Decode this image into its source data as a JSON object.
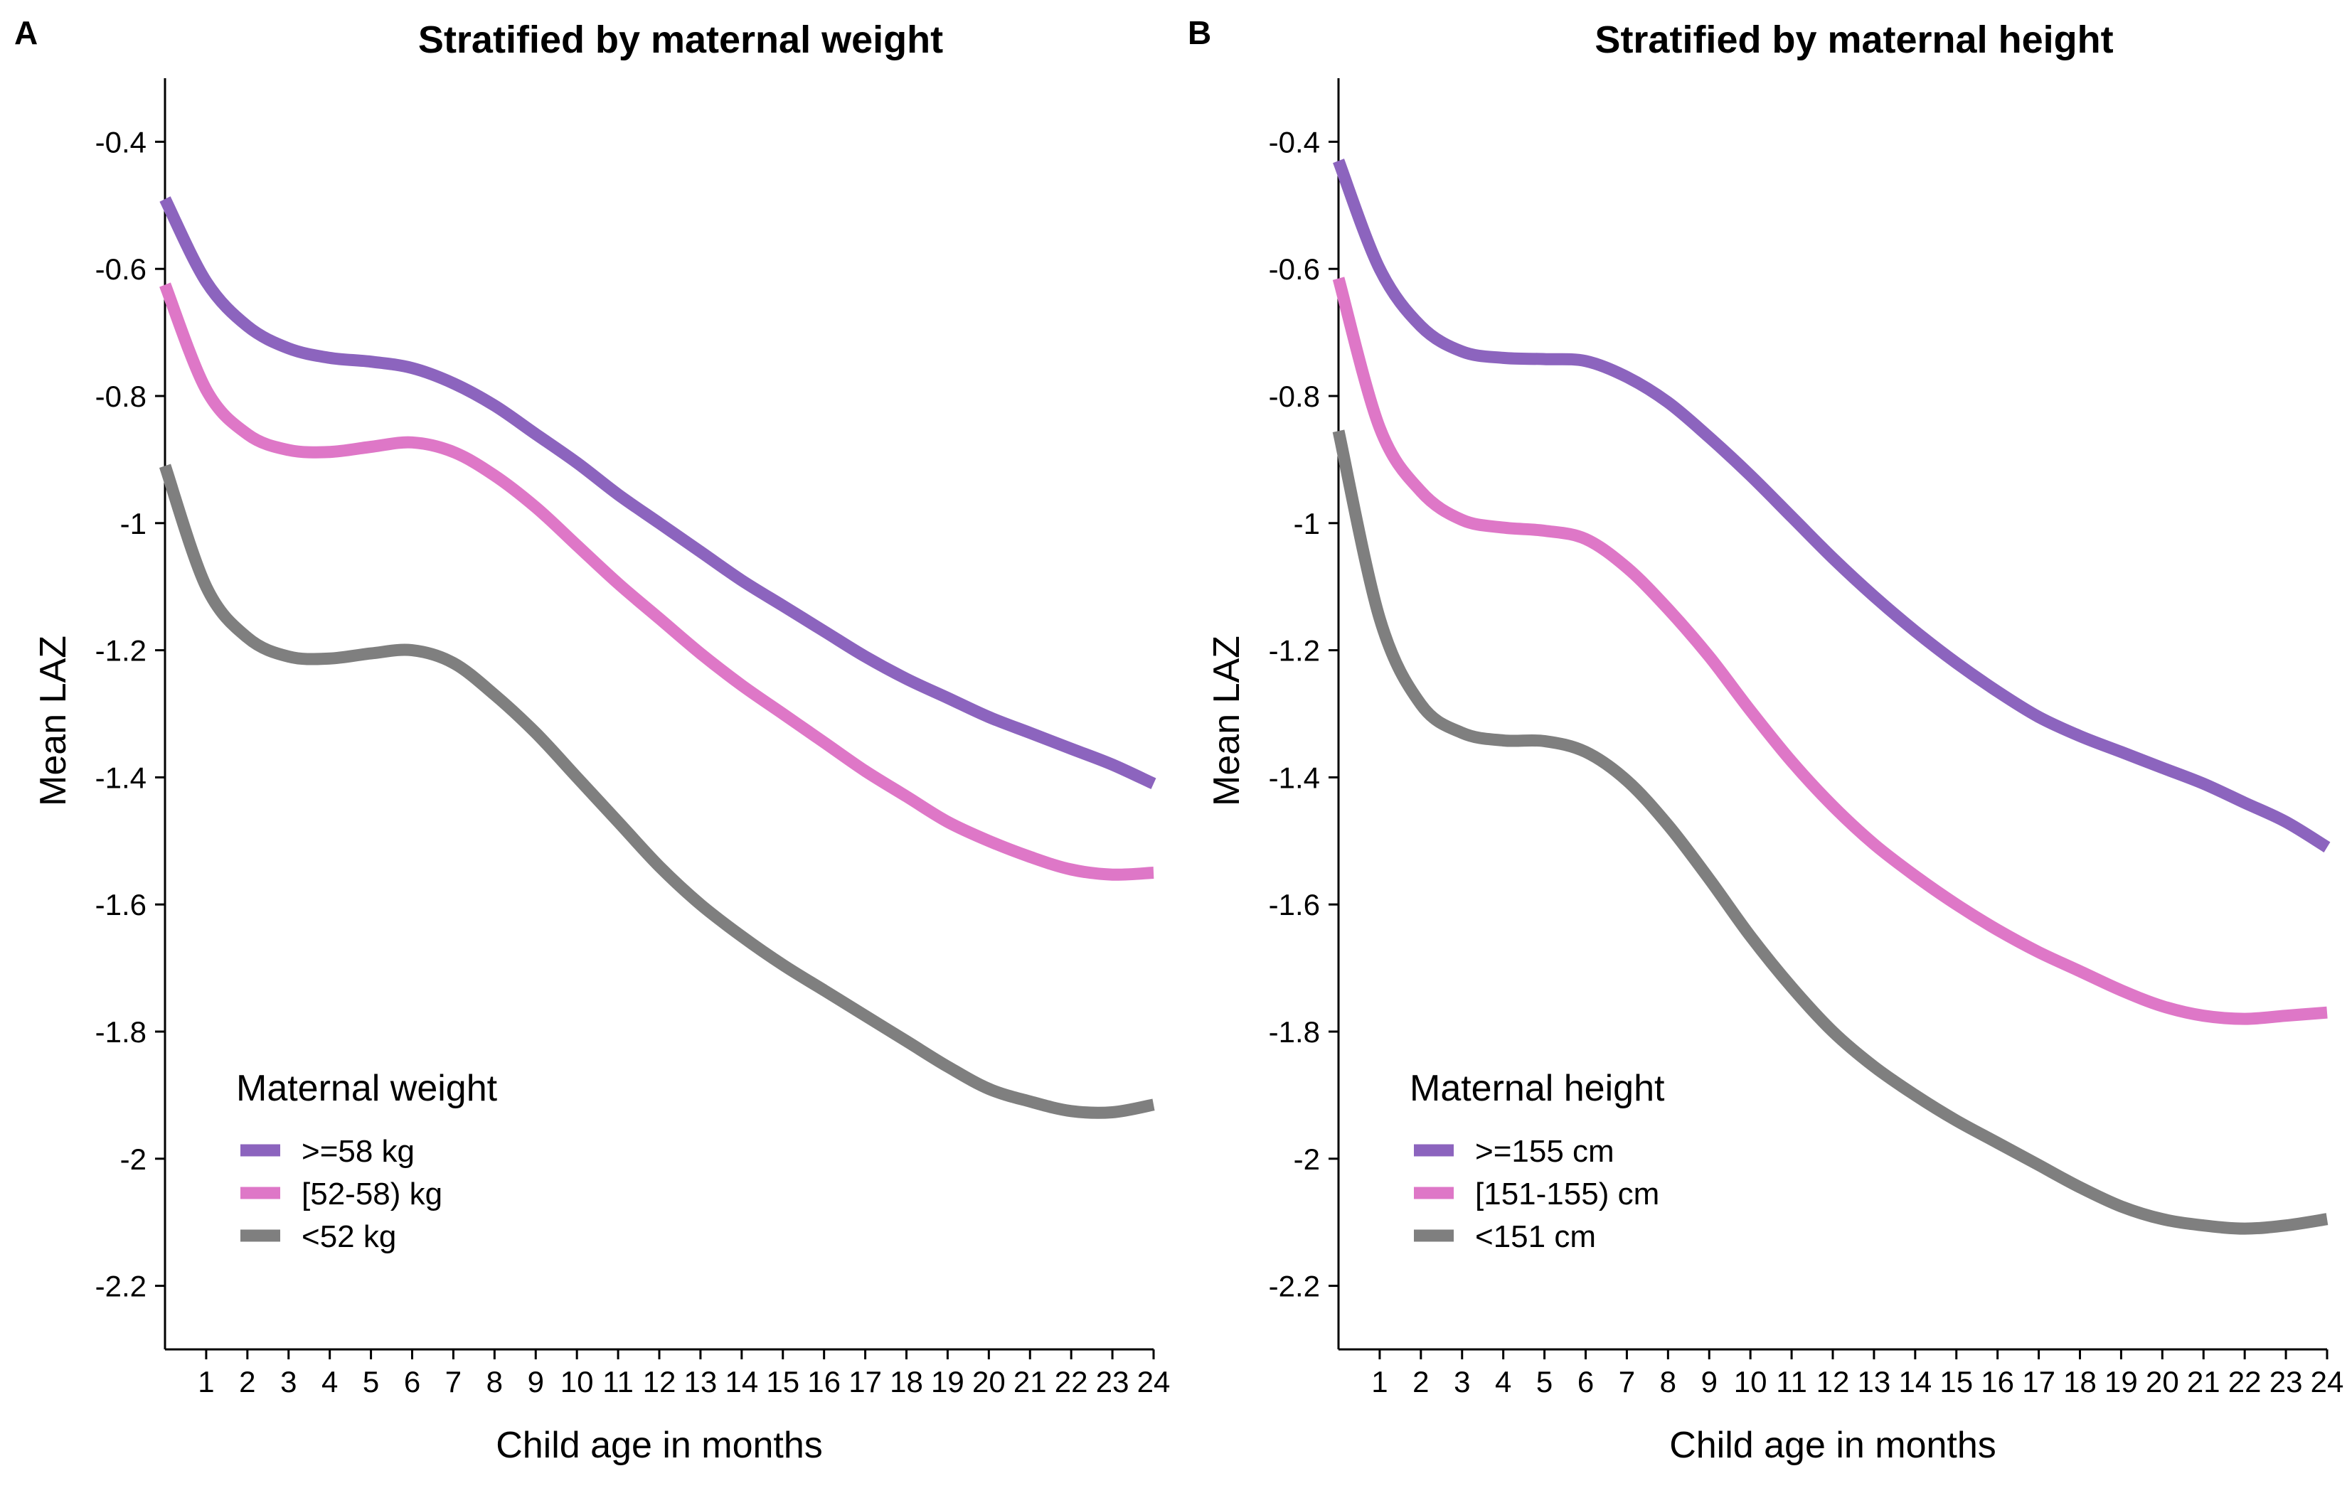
{
  "chart_data": [
    {
      "type": "line",
      "panel_label": "A",
      "title": "Stratified by maternal weight",
      "xlabel": "Child age in months",
      "ylabel": "Mean LAZ",
      "xlim": [
        0,
        24
      ],
      "ylim": [
        -2.3,
        -0.3
      ],
      "x_ticks": [
        1,
        2,
        3,
        4,
        5,
        6,
        7,
        8,
        9,
        10,
        11,
        12,
        13,
        14,
        15,
        16,
        17,
        18,
        19,
        20,
        21,
        22,
        23,
        24
      ],
      "y_ticks": [
        -0.4,
        -0.6,
        -0.8,
        -1,
        -1.2,
        -1.4,
        -1.6,
        -1.8,
        -2,
        -2.2
      ],
      "y_tick_labels": [
        "-0.4",
        "-0.6",
        "-0.8",
        "-1",
        "-1.2",
        "-1.4",
        "-1.6",
        "-1.8",
        "-2",
        "-2.2"
      ],
      "grid": false,
      "legend": {
        "title": "Maternal weight",
        "position": "bottom-left"
      },
      "x": [
        0,
        1,
        2,
        3,
        4,
        5,
        6,
        7,
        8,
        9,
        10,
        11,
        12,
        13,
        14,
        15,
        16,
        17,
        18,
        19,
        20,
        21,
        22,
        23,
        24
      ],
      "series": [
        {
          "name": ">=58 kg",
          "color": "#8C64BE",
          "values": [
            -0.49,
            -0.62,
            -0.69,
            -0.725,
            -0.74,
            -0.746,
            -0.756,
            -0.78,
            -0.815,
            -0.86,
            -0.905,
            -0.955,
            -1.0,
            -1.045,
            -1.09,
            -1.13,
            -1.17,
            -1.21,
            -1.245,
            -1.275,
            -1.305,
            -1.33,
            -1.355,
            -1.38,
            -1.41
          ]
        },
        {
          "name": "[52-58) kg",
          "color": "#DE77C7",
          "values": [
            -0.625,
            -0.79,
            -0.86,
            -0.885,
            -0.888,
            -0.88,
            -0.873,
            -0.888,
            -0.925,
            -0.975,
            -1.035,
            -1.095,
            -1.15,
            -1.205,
            -1.255,
            -1.3,
            -1.345,
            -1.39,
            -1.43,
            -1.47,
            -1.5,
            -1.525,
            -1.545,
            -1.553,
            -1.55
          ]
        },
        {
          "name": "<52 kg",
          "color": "#7F7F7F",
          "values": [
            -0.91,
            -1.1,
            -1.18,
            -1.21,
            -1.213,
            -1.205,
            -1.2,
            -1.22,
            -1.27,
            -1.33,
            -1.4,
            -1.47,
            -1.54,
            -1.6,
            -1.65,
            -1.695,
            -1.735,
            -1.775,
            -1.815,
            -1.855,
            -1.89,
            -1.91,
            -1.925,
            -1.927,
            -1.915
          ]
        }
      ]
    },
    {
      "type": "line",
      "panel_label": "B",
      "title": "Stratified by maternal height",
      "xlabel": "Child age in months",
      "ylabel": "Mean LAZ",
      "xlim": [
        0,
        24
      ],
      "ylim": [
        -2.3,
        -0.3
      ],
      "x_ticks": [
        1,
        2,
        3,
        4,
        5,
        6,
        7,
        8,
        9,
        10,
        11,
        12,
        13,
        14,
        15,
        16,
        17,
        18,
        19,
        20,
        21,
        22,
        23,
        24
      ],
      "y_ticks": [
        -0.4,
        -0.6,
        -0.8,
        -1,
        -1.2,
        -1.4,
        -1.6,
        -1.8,
        -2,
        -2.2
      ],
      "y_tick_labels": [
        "-0.4",
        "-0.6",
        "-0.8",
        "-1",
        "-1.2",
        "-1.4",
        "-1.6",
        "-1.8",
        "-2",
        "-2.2"
      ],
      "grid": false,
      "legend": {
        "title": "Maternal height",
        "position": "bottom-left"
      },
      "x": [
        0,
        1,
        2,
        3,
        4,
        5,
        6,
        7,
        8,
        9,
        10,
        11,
        12,
        13,
        14,
        15,
        16,
        17,
        18,
        19,
        20,
        21,
        22,
        23,
        24
      ],
      "series": [
        {
          "name": ">=155 cm",
          "color": "#8C64BE",
          "values": [
            -0.43,
            -0.6,
            -0.69,
            -0.73,
            -0.74,
            -0.742,
            -0.745,
            -0.77,
            -0.81,
            -0.865,
            -0.925,
            -0.99,
            -1.055,
            -1.115,
            -1.17,
            -1.22,
            -1.265,
            -1.305,
            -1.335,
            -1.36,
            -1.385,
            -1.41,
            -1.44,
            -1.47,
            -1.51
          ]
        },
        {
          "name": "[151-155) cm",
          "color": "#DE77C7",
          "values": [
            -0.615,
            -0.85,
            -0.95,
            -0.995,
            -1.007,
            -1.012,
            -1.025,
            -1.07,
            -1.135,
            -1.21,
            -1.295,
            -1.375,
            -1.445,
            -1.505,
            -1.555,
            -1.6,
            -1.64,
            -1.675,
            -1.705,
            -1.735,
            -1.76,
            -1.775,
            -1.78,
            -1.775,
            -1.77
          ]
        },
        {
          "name": "<151 cm",
          "color": "#7F7F7F",
          "values": [
            -0.855,
            -1.15,
            -1.285,
            -1.33,
            -1.342,
            -1.343,
            -1.36,
            -1.405,
            -1.475,
            -1.56,
            -1.65,
            -1.73,
            -1.8,
            -1.855,
            -1.9,
            -1.94,
            -1.975,
            -2.01,
            -2.045,
            -2.075,
            -2.095,
            -2.105,
            -2.11,
            -2.105,
            -2.095
          ]
        }
      ]
    }
  ]
}
